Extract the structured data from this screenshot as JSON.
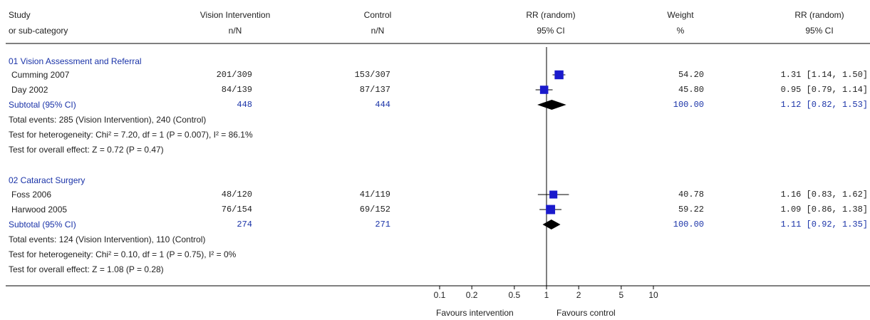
{
  "header": {
    "study_1": "Study",
    "study_2": "or sub-category",
    "vi_1": "Vision Intervention",
    "vi_2": "n/N",
    "ctrl_1": "Control",
    "ctrl_2": "n/N",
    "rr_1": "RR (random)",
    "rr_2": "95% CI",
    "wt_1": "Weight",
    "wt_2": "%",
    "rrc_1": "RR (random)",
    "rrc_2": "95% CI"
  },
  "groups": [
    {
      "title": "01 Vision Assessment and Referral",
      "studies": [
        {
          "name": "Cumming 2007",
          "vi": "201/309",
          "ctrl": "153/307",
          "weight": "54.20",
          "ci_text": "1.31 [1.14, 1.50]"
        },
        {
          "name": "Day 2002",
          "vi": "84/139",
          "ctrl": "87/137",
          "weight": "45.80",
          "ci_text": "0.95 [0.79, 1.14]"
        }
      ],
      "subtotal": {
        "label": "Subtotal (95% CI)",
        "vi": "448",
        "ctrl": "444",
        "weight": "100.00",
        "ci_text": "1.12 [0.82, 1.53]"
      },
      "events": "Total events: 285 (Vision Intervention), 240 (Control)",
      "heterogeneity": "Test for heterogeneity: Chi² = 7.20, df = 1 (P = 0.007), I² = 86.1%",
      "overall": "Test for overall effect: Z = 0.72 (P = 0.47)"
    },
    {
      "title": "02 Cataract Surgery",
      "studies": [
        {
          "name": "Foss 2006",
          "vi": "48/120",
          "ctrl": "41/119",
          "weight": "40.78",
          "ci_text": "1.16 [0.83, 1.62]"
        },
        {
          "name": "Harwood 2005",
          "vi": "76/154",
          "ctrl": "69/152",
          "weight": "59.22",
          "ci_text": "1.09 [0.86, 1.38]"
        }
      ],
      "subtotal": {
        "label": "Subtotal (95% CI)",
        "vi": "274",
        "ctrl": "271",
        "weight": "100.00",
        "ci_text": "1.11 [0.92, 1.35]"
      },
      "events": "Total events: 124 (Vision Intervention), 110 (Control)",
      "heterogeneity": "Test for heterogeneity: Chi² = 0.10, df = 1 (P = 0.75), I² = 0%",
      "overall": "Test for overall effect: Z = 1.08 (P = 0.28)"
    }
  ],
  "axis": {
    "ticks": [
      "0.1",
      "0.2",
      "0.5",
      "1",
      "2",
      "5",
      "10"
    ],
    "favours_left": "Favours intervention",
    "favours_right": "Favours control"
  },
  "colors": {
    "marker": "#1a1acc",
    "diamond": "#000000",
    "text_blue": "#1a33a8"
  },
  "chart_data": {
    "type": "forest",
    "x_scale": "log",
    "xlim": [
      0.1,
      10
    ],
    "reference_line": 1,
    "tick_values": [
      0.1,
      0.2,
      0.5,
      1,
      2,
      5,
      10
    ],
    "studies": [
      {
        "name": "Cumming 2007",
        "rr": 1.31,
        "lo": 1.14,
        "hi": 1.5,
        "weight": 54.2
      },
      {
        "name": "Day 2002",
        "rr": 0.95,
        "lo": 0.79,
        "hi": 1.14,
        "weight": 45.8
      },
      {
        "name": "Foss 2006",
        "rr": 1.16,
        "lo": 0.83,
        "hi": 1.62,
        "weight": 40.78
      },
      {
        "name": "Harwood 2005",
        "rr": 1.09,
        "lo": 0.86,
        "hi": 1.38,
        "weight": 59.22
      }
    ],
    "subtotals": [
      {
        "rr": 1.12,
        "lo": 0.82,
        "hi": 1.53
      },
      {
        "rr": 1.11,
        "lo": 0.92,
        "hi": 1.35
      }
    ]
  }
}
